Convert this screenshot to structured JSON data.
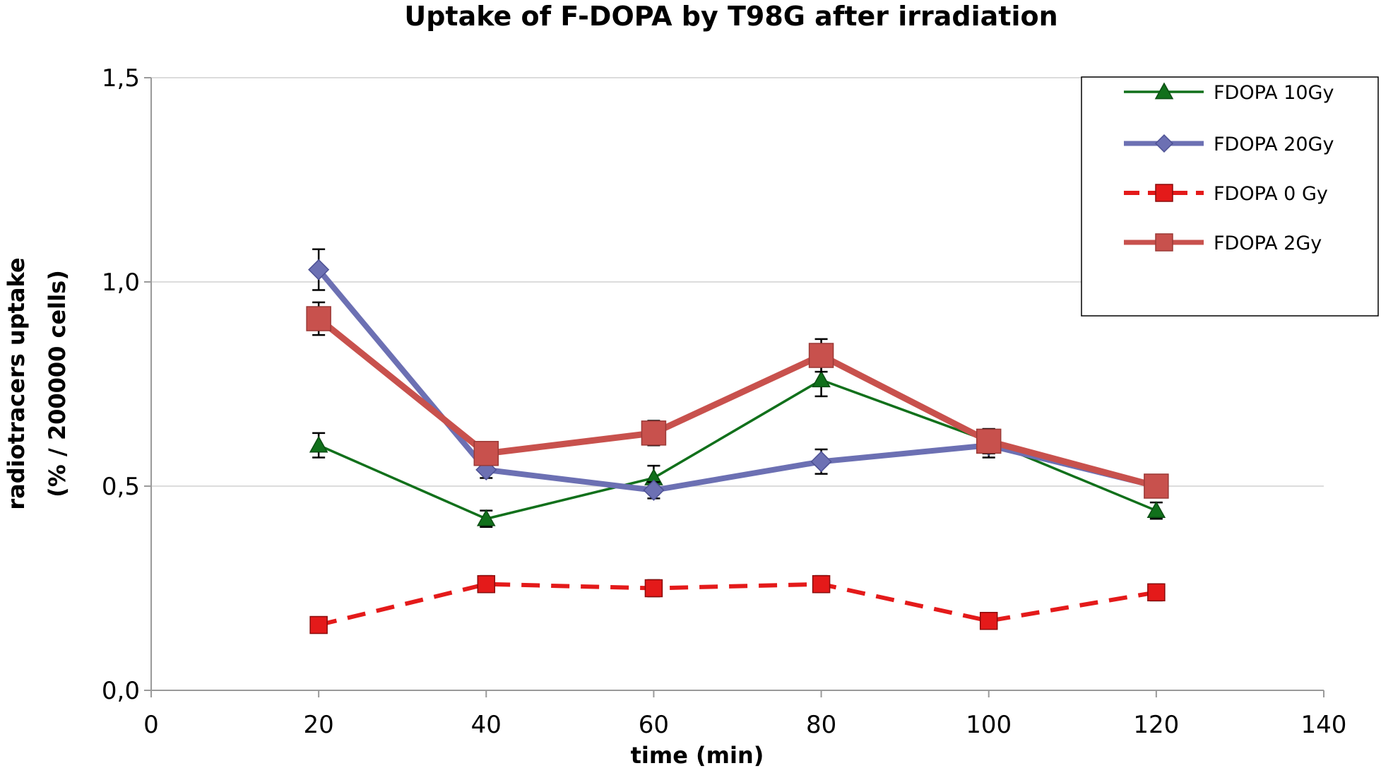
{
  "chart_data": {
    "type": "line",
    "title": "Uptake of F-DOPA by T98G after irradiation",
    "xlabel": "time (min)",
    "ylabel_line1": "radiotracers uptake",
    "ylabel_line2": "(% / 200000 cells)",
    "xlim": [
      0,
      140
    ],
    "ylim": [
      0,
      1.5
    ],
    "x_ticks": [
      0,
      20,
      40,
      60,
      80,
      100,
      120,
      140
    ],
    "x_tick_labels": [
      "0",
      "20",
      "40",
      "60",
      "80",
      "100",
      "120",
      "140"
    ],
    "y_ticks": [
      0,
      0.5,
      1.0,
      1.5
    ],
    "y_tick_labels": [
      "0,0",
      "0,5",
      "1,0",
      "1,5"
    ],
    "grid": "horizontal",
    "legend_position": "top-right",
    "x": [
      20,
      40,
      60,
      80,
      100,
      120
    ],
    "series": [
      {
        "name": "FDOPA 10Gy",
        "color": "#11701B",
        "marker": "triangle",
        "line": "solid-thin",
        "values": [
          0.6,
          0.42,
          0.52,
          0.76,
          0.61,
          0.44
        ],
        "errors": [
          0.03,
          0.02,
          0.03,
          0.04,
          0.03,
          0.02
        ]
      },
      {
        "name": "FDOPA 20Gy",
        "color": "#6C70B3",
        "marker": "diamond",
        "line": "solid-thick",
        "values": [
          1.03,
          0.54,
          0.49,
          0.56,
          0.6,
          0.5
        ],
        "errors": [
          0.05,
          0.02,
          0.02,
          0.03,
          0.03,
          0.02
        ]
      },
      {
        "name": "FDOPA 0 Gy",
        "color": "#E41A1A",
        "marker": "square",
        "line": "dashed",
        "values": [
          0.16,
          0.26,
          0.25,
          0.26,
          0.17,
          0.24
        ],
        "errors": [
          0.01,
          0.02,
          0.02,
          0.02,
          0.01,
          0.02
        ]
      },
      {
        "name": "FDOPA 2Gy",
        "color": "#C8514D",
        "marker": "square-large",
        "line": "solid-thick",
        "values": [
          0.91,
          0.58,
          0.63,
          0.82,
          0.61,
          0.5
        ],
        "errors": [
          0.04,
          0.02,
          0.03,
          0.04,
          0.03,
          0.02
        ]
      }
    ]
  }
}
